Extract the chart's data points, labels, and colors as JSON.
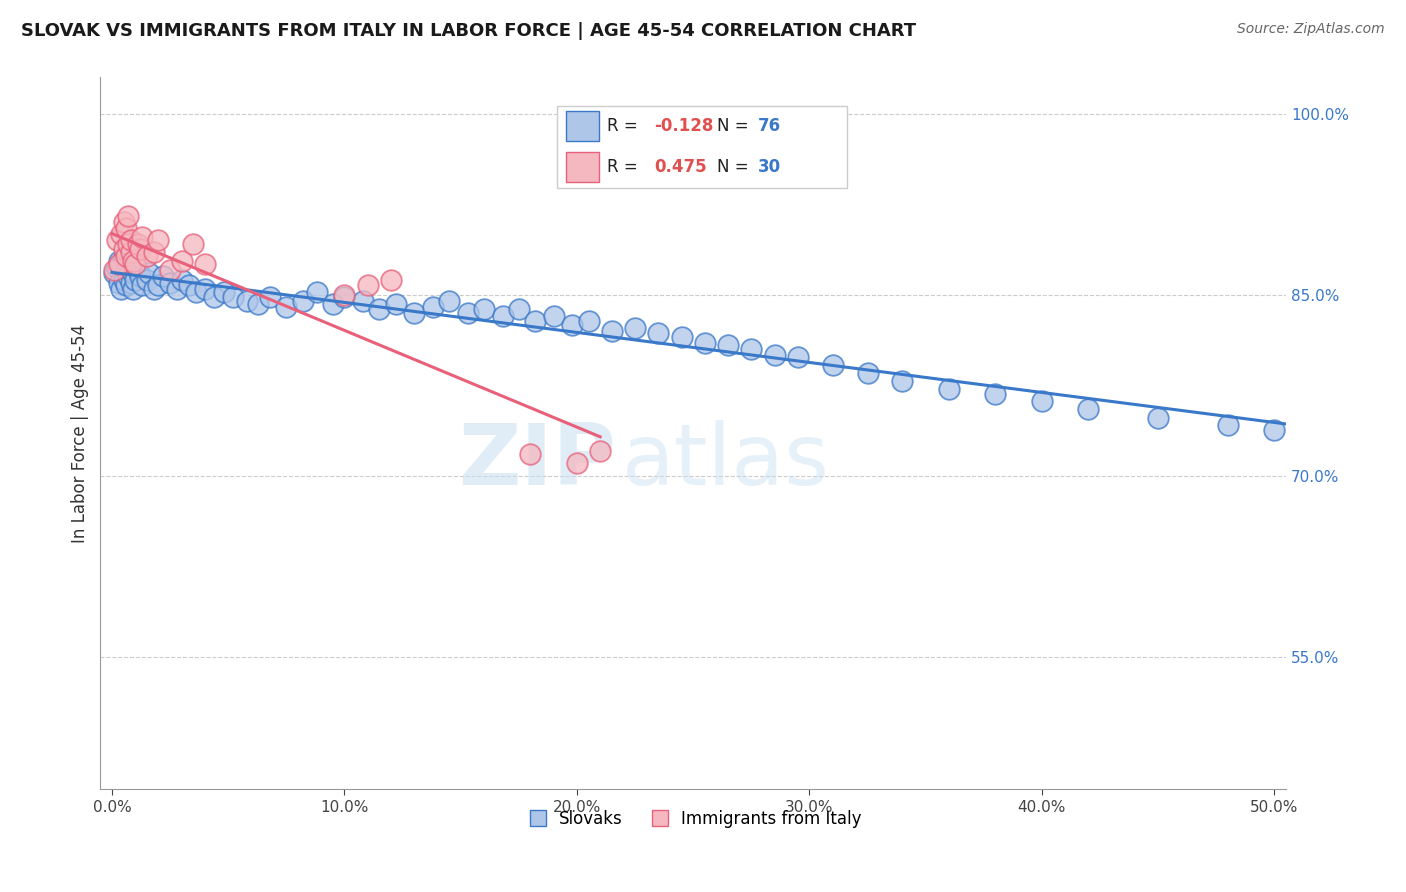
{
  "title": "SLOVAK VS IMMIGRANTS FROM ITALY IN LABOR FORCE | AGE 45-54 CORRELATION CHART",
  "source": "Source: ZipAtlas.com",
  "ylabel": "In Labor Force | Age 45-54",
  "xlim": [
    -0.005,
    0.505
  ],
  "ylim": [
    0.44,
    1.03
  ],
  "xticks": [
    0.0,
    0.1,
    0.2,
    0.3,
    0.4,
    0.5
  ],
  "xticklabels": [
    "0.0%",
    "10.0%",
    "20.0%",
    "30.0%",
    "40.0%",
    "50.0%"
  ],
  "yticks": [
    0.55,
    0.7,
    0.85,
    1.0
  ],
  "yticklabels": [
    "55.0%",
    "70.0%",
    "85.0%",
    "100.0%"
  ],
  "blue_R": -0.128,
  "blue_N": 76,
  "pink_R": 0.475,
  "pink_N": 30,
  "blue_color": "#aec6e8",
  "pink_color": "#f5b8c0",
  "blue_line_color": "#3a78c9",
  "pink_line_color": "#e8607a",
  "legend_blue_label": "Slovaks",
  "legend_pink_label": "Immigrants from Italy",
  "watermark_zip": "ZIP",
  "watermark_atlas": "atlas",
  "blue_scatter_x": [
    0.001,
    0.002,
    0.003,
    0.003,
    0.004,
    0.004,
    0.005,
    0.005,
    0.006,
    0.006,
    0.007,
    0.007,
    0.008,
    0.008,
    0.009,
    0.009,
    0.01,
    0.01,
    0.011,
    0.012,
    0.013,
    0.015,
    0.016,
    0.018,
    0.02,
    0.022,
    0.025,
    0.028,
    0.03,
    0.033,
    0.036,
    0.04,
    0.044,
    0.048,
    0.052,
    0.058,
    0.063,
    0.068,
    0.075,
    0.082,
    0.088,
    0.095,
    0.1,
    0.108,
    0.115,
    0.122,
    0.13,
    0.138,
    0.145,
    0.153,
    0.16,
    0.168,
    0.175,
    0.182,
    0.19,
    0.198,
    0.205,
    0.215,
    0.225,
    0.235,
    0.245,
    0.255,
    0.265,
    0.275,
    0.285,
    0.295,
    0.31,
    0.325,
    0.34,
    0.36,
    0.38,
    0.4,
    0.42,
    0.45,
    0.48,
    0.5
  ],
  "blue_scatter_y": [
    0.868,
    0.872,
    0.86,
    0.878,
    0.855,
    0.875,
    0.862,
    0.88,
    0.858,
    0.87,
    0.865,
    0.875,
    0.86,
    0.87,
    0.855,
    0.868,
    0.862,
    0.875,
    0.87,
    0.865,
    0.858,
    0.862,
    0.868,
    0.855,
    0.858,
    0.865,
    0.86,
    0.855,
    0.862,
    0.858,
    0.852,
    0.855,
    0.848,
    0.852,
    0.848,
    0.845,
    0.842,
    0.848,
    0.84,
    0.845,
    0.852,
    0.842,
    0.848,
    0.845,
    0.838,
    0.842,
    0.835,
    0.84,
    0.845,
    0.835,
    0.838,
    0.832,
    0.838,
    0.828,
    0.832,
    0.825,
    0.828,
    0.82,
    0.822,
    0.818,
    0.815,
    0.81,
    0.808,
    0.805,
    0.8,
    0.798,
    0.792,
    0.785,
    0.778,
    0.772,
    0.768,
    0.762,
    0.755,
    0.748,
    0.742,
    0.738
  ],
  "pink_scatter_x": [
    0.001,
    0.002,
    0.003,
    0.004,
    0.005,
    0.005,
    0.006,
    0.006,
    0.007,
    0.007,
    0.008,
    0.008,
    0.009,
    0.01,
    0.011,
    0.012,
    0.013,
    0.015,
    0.018,
    0.02,
    0.025,
    0.03,
    0.035,
    0.04,
    0.1,
    0.11,
    0.12,
    0.18,
    0.2,
    0.21
  ],
  "pink_scatter_y": [
    0.87,
    0.895,
    0.875,
    0.9,
    0.888,
    0.91,
    0.882,
    0.905,
    0.892,
    0.915,
    0.885,
    0.895,
    0.878,
    0.875,
    0.892,
    0.888,
    0.898,
    0.882,
    0.885,
    0.895,
    0.87,
    0.878,
    0.892,
    0.875,
    0.85,
    0.858,
    0.862,
    0.718,
    0.71,
    0.72
  ]
}
